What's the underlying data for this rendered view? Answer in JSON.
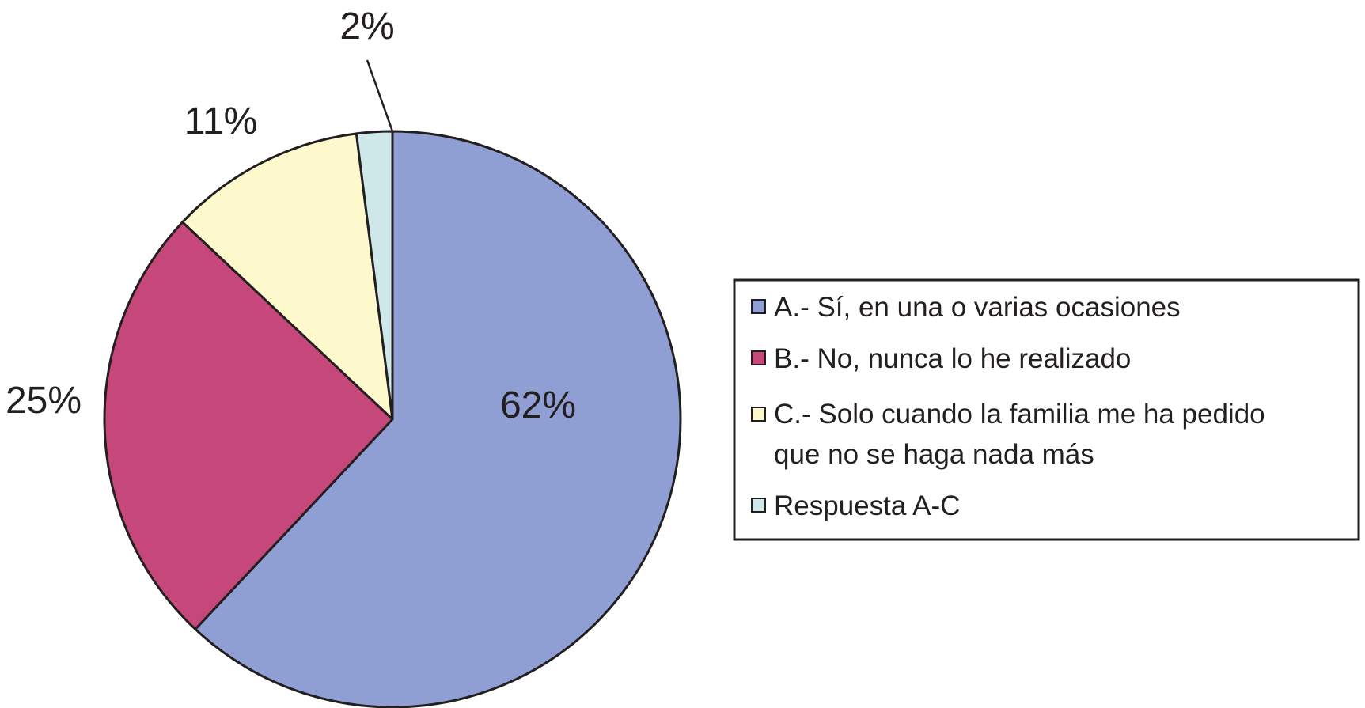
{
  "chart_data": {
    "type": "pie",
    "slices": [
      {
        "label": "A.- Sí, en una o varias ocasiones",
        "value": 62,
        "value_label": "62%",
        "color": "#909fd3"
      },
      {
        "label": "B.- No, nunca lo he realizado",
        "value": 25,
        "value_label": "25%",
        "color": "#c6487a"
      },
      {
        "label": "C.- Solo cuando la familia me ha pedido que no se haga nada más",
        "legend_lines": [
          "C.- Solo cuando la familia me ha pedido",
          "que no se haga nada más"
        ],
        "value": 11,
        "value_label": "11%",
        "color": "#fdf9cc"
      },
      {
        "label": "Respuesta A-C",
        "value": 2,
        "value_label": "2%",
        "color": "#cfe9ea"
      }
    ],
    "start_angle": "12 o'clock",
    "direction": "clockwise",
    "legend_position": "right"
  }
}
